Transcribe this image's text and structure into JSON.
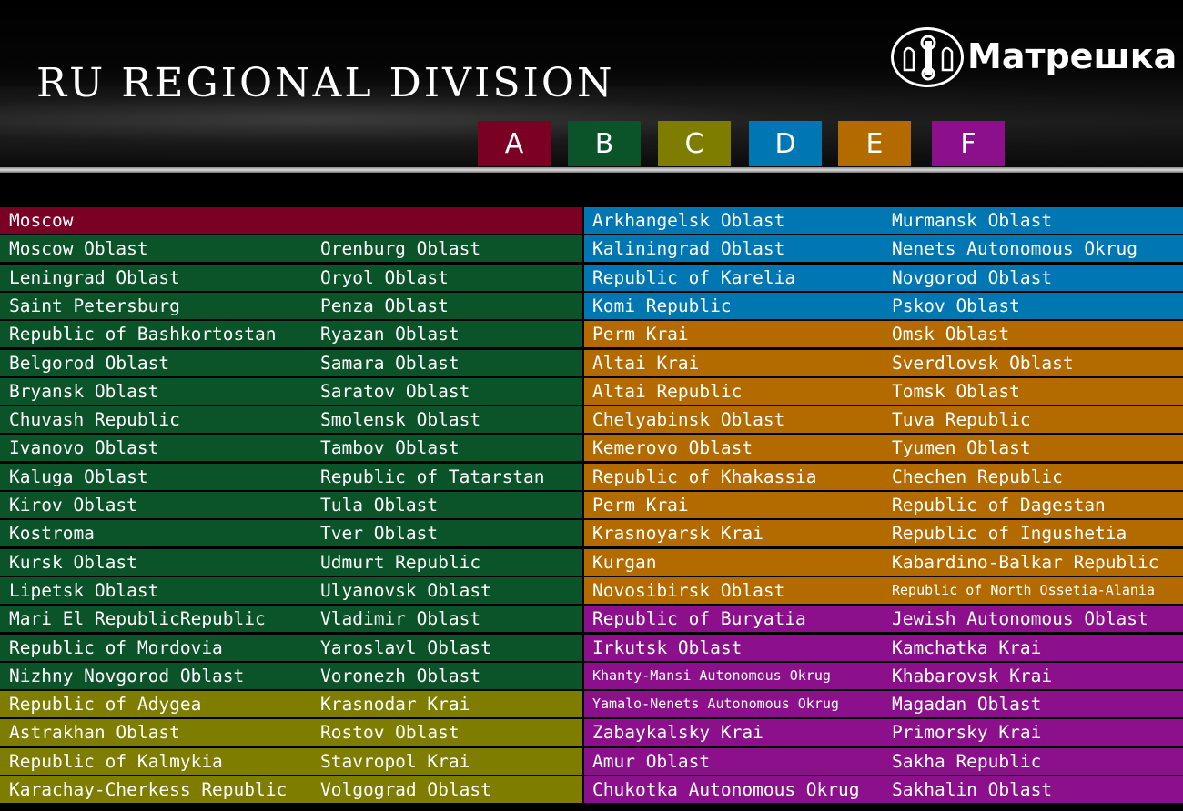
{
  "header": {
    "title": "RU REGIONAL DIVISION",
    "logo_text": "Матрешка"
  },
  "legend": [
    {
      "label": "A",
      "color": "#7a0024"
    },
    {
      "label": "B",
      "color": "#0b5429"
    },
    {
      "label": "C",
      "color": "#7e7d00"
    },
    {
      "label": "D",
      "color": "#0077b2"
    },
    {
      "label": "E",
      "color": "#b36b00"
    },
    {
      "label": "F",
      "color": "#8c0f8c"
    }
  ],
  "left": [
    {
      "g": "A",
      "a": "Moscow",
      "b": ""
    },
    {
      "g": "B",
      "a": "Moscow Oblast",
      "b": "Orenburg Oblast"
    },
    {
      "g": "B",
      "a": "Leningrad Oblast",
      "b": "Oryol Oblast"
    },
    {
      "g": "B",
      "a": "Saint Petersburg",
      "b": "Penza Oblast"
    },
    {
      "g": "B",
      "a": "Republic of Bashkortostan",
      "b": "Ryazan Oblast"
    },
    {
      "g": "B",
      "a": "Belgorod Oblast",
      "b": "Samara Oblast"
    },
    {
      "g": "B",
      "a": "Bryansk Oblast",
      "b": "Saratov Oblast"
    },
    {
      "g": "B",
      "a": "Chuvash Republic",
      "b": "Smolensk Oblast"
    },
    {
      "g": "B",
      "a": "Ivanovo Oblast",
      "b": "Tambov Oblast"
    },
    {
      "g": "B",
      "a": "Kaluga Oblast",
      "b": "Republic of Tatarstan"
    },
    {
      "g": "B",
      "a": "Kirov Oblast",
      "b": "Tula Oblast"
    },
    {
      "g": "B",
      "a": "Kostroma",
      "b": "Tver Oblast"
    },
    {
      "g": "B",
      "a": "Kursk Oblast",
      "b": "Udmurt Republic"
    },
    {
      "g": "B",
      "a": "Lipetsk Oblast",
      "b": "Ulyanovsk Oblast"
    },
    {
      "g": "B",
      "a": "Mari El RepublicRepublic",
      "b": "Vladimir Oblast"
    },
    {
      "g": "B",
      "a": "Republic of Mordovia",
      "b": "Yaroslavl Oblast"
    },
    {
      "g": "B",
      "a": "Nizhny Novgorod Oblast",
      "b": "Voronezh Oblast"
    },
    {
      "g": "C",
      "a": "Republic of Adygea",
      "b": "Krasnodar Krai"
    },
    {
      "g": "C",
      "a": "Astrakhan Oblast",
      "b": "Rostov Oblast"
    },
    {
      "g": "C",
      "a": "Republic of Kalmykia",
      "b": "Stavropol Krai"
    },
    {
      "g": "C",
      "a": "Karachay-Cherkess Republic",
      "b": "Volgograd Oblast"
    }
  ],
  "right": [
    {
      "g": "D",
      "a": "Arkhangelsk Oblast",
      "b": "Murmansk Oblast"
    },
    {
      "g": "D",
      "a": "Kaliningrad Oblast",
      "b": "Nenets Autonomous Okrug"
    },
    {
      "g": "D",
      "a": "Republic of Karelia",
      "b": "Novgorod Oblast"
    },
    {
      "g": "D",
      "a": "Komi Republic",
      "b": "Pskov Oblast"
    },
    {
      "g": "E",
      "a": "Perm Krai",
      "b": "Omsk Oblast"
    },
    {
      "g": "E",
      "a": "Altai Krai",
      "b": "Sverdlovsk Oblast"
    },
    {
      "g": "E",
      "a": "Altai Republic",
      "b": "Tomsk Oblast"
    },
    {
      "g": "E",
      "a": "Chelyabinsk Oblast",
      "b": "Tuva Republic"
    },
    {
      "g": "E",
      "a": "Kemerovo Oblast",
      "b": "Tyumen Oblast"
    },
    {
      "g": "E",
      "a": "Republic of Khakassia",
      "b": "Chechen Republic"
    },
    {
      "g": "E",
      "a": "Perm Krai",
      "b": "Republic of Dagestan"
    },
    {
      "g": "E",
      "a": "Krasnoyarsk Krai",
      "b": "Republic of Ingushetia"
    },
    {
      "g": "E",
      "a": "Kurgan",
      "b": "Kabardino-Balkar Republic"
    },
    {
      "g": "E",
      "a": "Novosibirsk Oblast",
      "b": "Republic of North Ossetia-Alania",
      "bs": true
    },
    {
      "g": "F",
      "a": "Republic of Buryatia",
      "b": "Jewish Autonomous Oblast"
    },
    {
      "g": "F",
      "a": "Irkutsk Oblast",
      "b": "Kamchatka Krai"
    },
    {
      "g": "F",
      "a": "Khanty-Mansi Autonomous Okrug",
      "b": "Khabarovsk Krai",
      "as": true
    },
    {
      "g": "F",
      "a": "Yamalo-Nenets Autonomous Okrug",
      "b": "Magadan Oblast",
      "as": true
    },
    {
      "g": "F",
      "a": "Zabaykalsky Krai",
      "b": "Primorsky Krai"
    },
    {
      "g": "F",
      "a": "Amur Oblast",
      "b": "Sakha Republic"
    },
    {
      "g": "F",
      "a": "Chukotka  Autonomous Okrug",
      "b": "Sakhalin Oblast"
    }
  ]
}
